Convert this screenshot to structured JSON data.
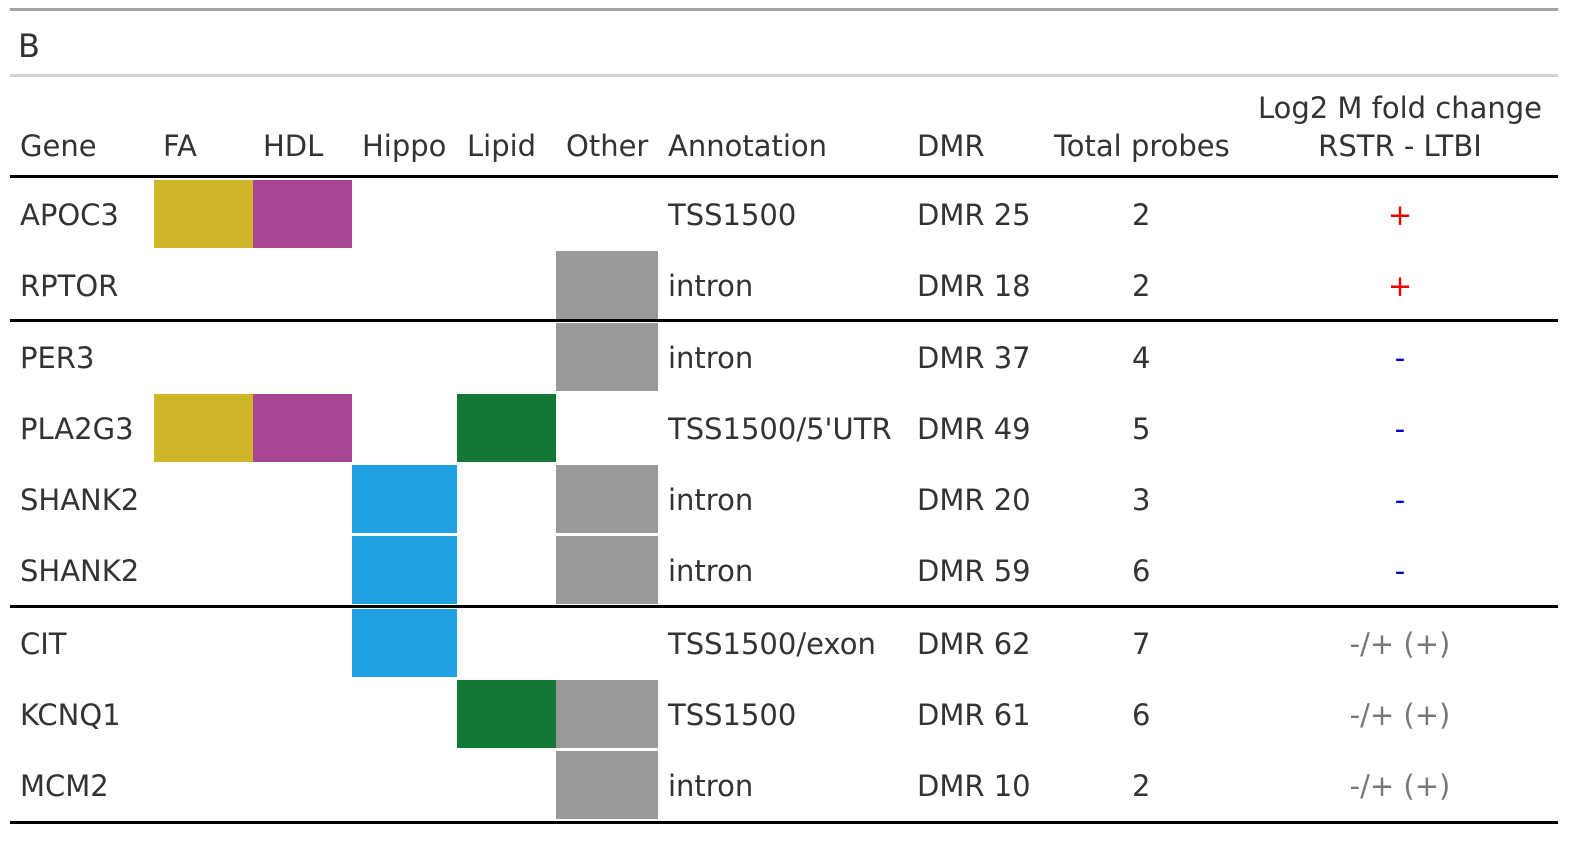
{
  "panel_label": "B",
  "columns": {
    "gene": "Gene",
    "fa": "FA",
    "hdl": "HDL",
    "hippo": "Hippo",
    "lipid": "Lipid",
    "other": "Other",
    "annotation": "Annotation",
    "dmr": "DMR",
    "total_probes": "Total probes",
    "fold_change_line1": "Log2 M fold change",
    "fold_change_line2": "RSTR - LTBI"
  },
  "colors": {
    "FA": "#cfb52a",
    "HDL": "#a94694",
    "Hippo": "#1fa1e2",
    "Lipid": "#117935",
    "Other": "#999999",
    "plus": "#ee0000",
    "minus": "#0000cc",
    "mixed": "#777777"
  },
  "rows": [
    {
      "gene": "APOC3",
      "categories": [
        "FA",
        "HDL"
      ],
      "annotation": "TSS1500",
      "dmr": "DMR 25",
      "total_probes": "2",
      "fold_change": "+",
      "fc_style": "plus"
    },
    {
      "gene": "RPTOR",
      "categories": [
        "Other"
      ],
      "annotation": "intron",
      "dmr": "DMR 18",
      "total_probes": "2",
      "fold_change": "+",
      "fc_style": "plus"
    },
    {
      "gene": "PER3",
      "categories": [
        "Other"
      ],
      "annotation": "intron",
      "dmr": "DMR 37",
      "total_probes": "4",
      "fold_change": "-",
      "fc_style": "minus"
    },
    {
      "gene": "PLA2G3",
      "categories": [
        "FA",
        "HDL",
        "Lipid"
      ],
      "annotation": "TSS1500/5'UTR",
      "dmr": "DMR 49",
      "total_probes": "5",
      "fold_change": "-",
      "fc_style": "minus"
    },
    {
      "gene": "SHANK2",
      "categories": [
        "Hippo",
        "Other"
      ],
      "annotation": "intron",
      "dmr": "DMR 20",
      "total_probes": "3",
      "fold_change": "-",
      "fc_style": "minus"
    },
    {
      "gene": "SHANK2",
      "categories": [
        "Hippo",
        "Other"
      ],
      "annotation": "intron",
      "dmr": "DMR 59",
      "total_probes": "6",
      "fold_change": "-",
      "fc_style": "minus"
    },
    {
      "gene": "CIT",
      "categories": [
        "Hippo"
      ],
      "annotation": "TSS1500/exon",
      "dmr": "DMR 62",
      "total_probes": "7",
      "fold_change": "-/+ (+)",
      "fc_style": "mixed"
    },
    {
      "gene": "KCNQ1",
      "categories": [
        "Lipid",
        "Other"
      ],
      "annotation": "TSS1500",
      "dmr": "DMR 61",
      "total_probes": "6",
      "fold_change": "-/+ (+)",
      "fc_style": "mixed"
    },
    {
      "gene": "MCM2",
      "categories": [
        "Other"
      ],
      "annotation": "intron",
      "dmr": "DMR 10",
      "total_probes": "2",
      "fold_change": "-/+ (+)",
      "fc_style": "mixed"
    }
  ]
}
